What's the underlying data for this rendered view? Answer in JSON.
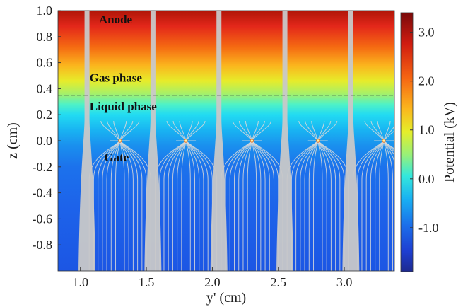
{
  "chart_data": {
    "type": "heatmap",
    "title": "",
    "xlabel": "y' (cm)",
    "ylabel": "z (cm)",
    "xlim": [
      0.83,
      3.38
    ],
    "ylim": [
      -1.0,
      1.0
    ],
    "x_ticks": [
      1.0,
      1.5,
      2.0,
      2.5,
      3.0
    ],
    "x_tick_labels": [
      "1.0",
      "1.5",
      "2.0",
      "2.5",
      "3.0"
    ],
    "y_ticks": [
      -0.8,
      -0.6,
      -0.4,
      -0.2,
      0.0,
      0.2,
      0.4,
      0.6,
      0.8,
      1.0
    ],
    "y_tick_labels": [
      "-0.8",
      "-0.6",
      "-0.4",
      "-0.2",
      "0.0",
      "0.2",
      "0.4",
      "0.6",
      "0.8",
      "1.0"
    ],
    "colorbar": {
      "label": "Potential (kV)",
      "range": [
        -1.9,
        3.4
      ],
      "ticks": [
        -1.0,
        0.0,
        1.0,
        2.0,
        3.0
      ],
      "tick_labels": [
        "-1.0",
        "0.0",
        "1.0",
        "2.0",
        "3.0"
      ],
      "colormap": "jet"
    },
    "field_lines_color": "#d9d9d9",
    "anode_field_line_x": [
      1.05,
      1.55,
      2.05,
      2.55,
      3.05
    ],
    "gate_wire_x": [
      1.3,
      1.8,
      2.3,
      2.8,
      3.3
    ],
    "gate_wire_z": 0.0,
    "liquid_surface_z": 0.35,
    "annotations": [
      {
        "text": "Anode",
        "x": 1.14,
        "z": 0.93
      },
      {
        "text": "Gas phase",
        "x": 1.07,
        "z": 0.48
      },
      {
        "text": "Liquid phase",
        "x": 1.07,
        "z": 0.26
      },
      {
        "text": "Gate",
        "x": 1.18,
        "z": -0.13
      }
    ]
  }
}
